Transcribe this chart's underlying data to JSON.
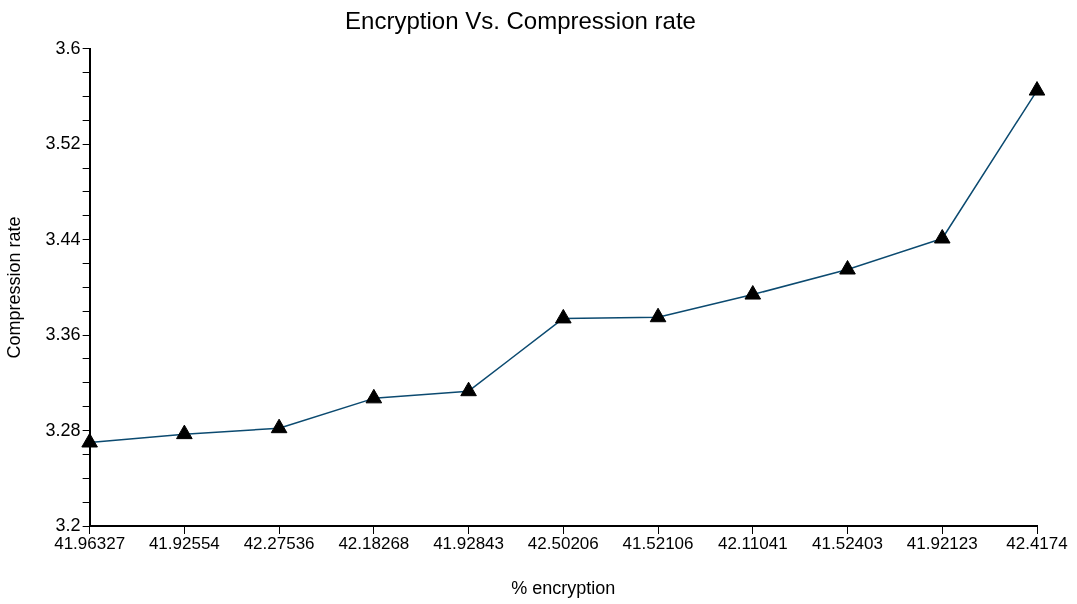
{
  "chart_data": {
    "type": "line",
    "title": "Encryption Vs. Compression rate",
    "xlabel": "% encryption",
    "ylabel": "Compression rate",
    "categories": [
      "41.96327",
      "41.92554",
      "42.27536",
      "42.18268",
      "41.92843",
      "42.50206",
      "41.52106",
      "42.11041",
      "41.52403",
      "41.92123",
      "42.4174"
    ],
    "series": [
      {
        "color": "#0b4a70",
        "values": [
          3.27,
          3.277,
          3.282,
          3.307,
          3.313,
          3.374,
          3.375,
          3.394,
          3.415,
          3.441,
          3.565
        ]
      }
    ],
    "ylim": [
      3.2,
      3.6
    ],
    "yticks": [
      3.2,
      {
        "value": 3.22,
        "label": null
      },
      {
        "value": 3.24,
        "label": null
      },
      {
        "value": 3.26,
        "label": null
      },
      3.28,
      {
        "value": 3.3,
        "label": null
      },
      {
        "value": 3.32,
        "label": null
      },
      {
        "value": 3.34,
        "label": null
      },
      3.36,
      {
        "value": 3.38,
        "label": null
      },
      {
        "value": 3.4,
        "label": null
      },
      {
        "value": 3.42,
        "label": null
      },
      3.44,
      {
        "value": 3.46,
        "label": null
      },
      {
        "value": 3.48,
        "label": null
      },
      {
        "value": 3.5,
        "label": null
      },
      3.52,
      {
        "value": 3.54,
        "label": null
      },
      {
        "value": 3.56,
        "label": null
      },
      {
        "value": 3.58,
        "label": null
      },
      3.6
    ],
    "grid": false,
    "legend": false,
    "marker": "triangle",
    "line_style": "solid"
  }
}
